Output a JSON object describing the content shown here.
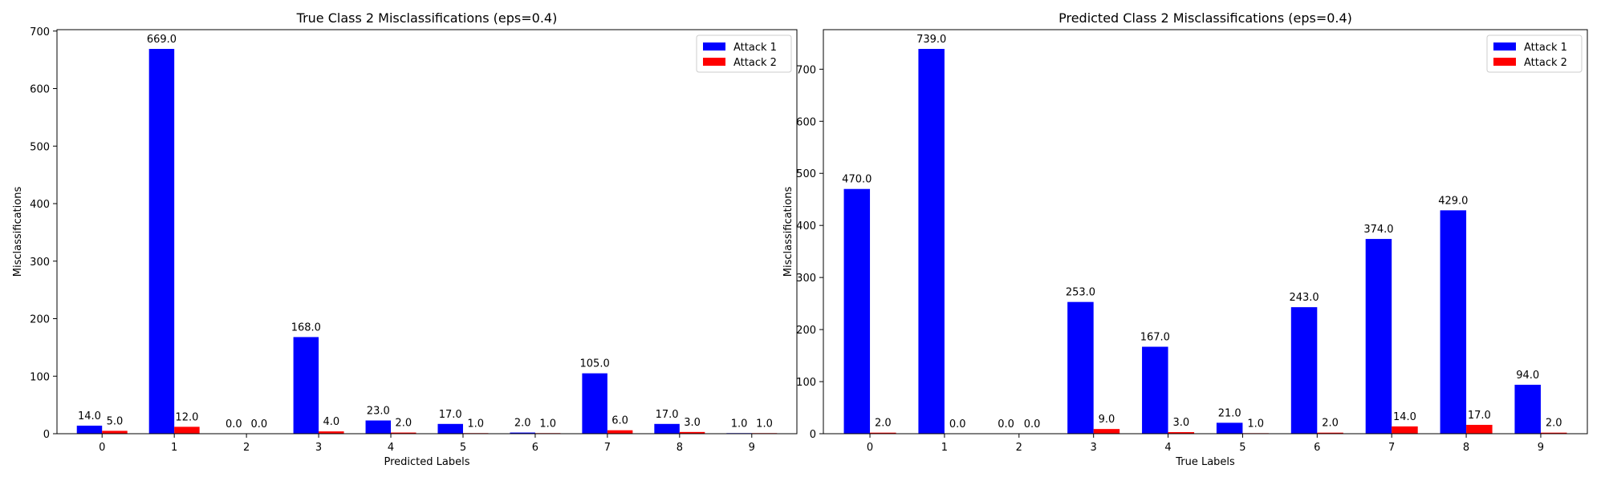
{
  "chart_data": [
    {
      "type": "bar",
      "title": "True Class 2 Misclassifications (eps=0.4)",
      "xlabel": "Predicted Labels",
      "ylabel": "Misclassifications",
      "categories": [
        "0",
        "1",
        "2",
        "3",
        "4",
        "5",
        "6",
        "7",
        "8",
        "9"
      ],
      "series": [
        {
          "name": "Attack 1",
          "color": "#0000ff",
          "values": [
            14.0,
            669.0,
            0.0,
            168.0,
            23.0,
            17.0,
            2.0,
            105.0,
            17.0,
            1.0
          ],
          "labels": [
            "14.0",
            "669.0",
            "0.0",
            "168.0",
            "23.0",
            "17.0",
            "2.0",
            "105.0",
            "17.0",
            "1.0"
          ]
        },
        {
          "name": "Attack 2",
          "color": "#ff0000",
          "values": [
            5.0,
            12.0,
            0.0,
            4.0,
            2.0,
            1.0,
            1.0,
            6.0,
            3.0,
            1.0
          ],
          "labels": [
            "5.0",
            "12.0",
            "0.0",
            "4.0",
            "2.0",
            "1.0",
            "1.0",
            "6.0",
            "3.0",
            "1.0"
          ]
        }
      ],
      "yticks": [
        0,
        100,
        200,
        300,
        400,
        500,
        600,
        700
      ],
      "ylim": [
        0,
        702.45
      ],
      "legend": "top-right",
      "grid": false
    },
    {
      "type": "bar",
      "title": "Predicted Class 2 Misclassifications (eps=0.4)",
      "xlabel": "True Labels",
      "ylabel": "Misclassifications",
      "categories": [
        "0",
        "1",
        "2",
        "3",
        "4",
        "5",
        "6",
        "7",
        "8",
        "9"
      ],
      "series": [
        {
          "name": "Attack 1",
          "color": "#0000ff",
          "values": [
            470.0,
            739.0,
            0.0,
            253.0,
            167.0,
            21.0,
            243.0,
            374.0,
            429.0,
            94.0
          ],
          "labels": [
            "470.0",
            "739.0",
            "0.0",
            "253.0",
            "167.0",
            "21.0",
            "243.0",
            "374.0",
            "429.0",
            "94.0"
          ]
        },
        {
          "name": "Attack 2",
          "color": "#ff0000",
          "values": [
            2.0,
            0.0,
            0.0,
            9.0,
            3.0,
            1.0,
            2.0,
            14.0,
            17.0,
            2.0
          ],
          "labels": [
            "2.0",
            "0.0",
            "0.0",
            "9.0",
            "3.0",
            "1.0",
            "2.0",
            "14.0",
            "17.0",
            "2.0"
          ]
        }
      ],
      "yticks": [
        0,
        100,
        200,
        300,
        400,
        500,
        600,
        700
      ],
      "ylim": [
        0,
        775.95
      ],
      "legend": "top-right",
      "grid": false
    }
  ]
}
